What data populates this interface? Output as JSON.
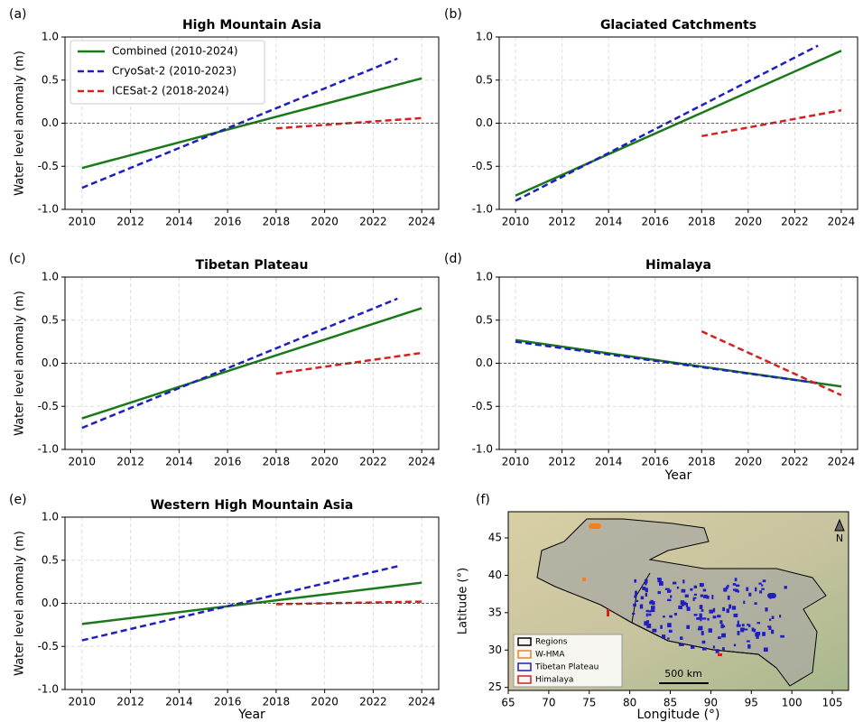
{
  "chart_data": [
    {
      "type": "line",
      "label": "(a)",
      "title": "High Mountain Asia",
      "ylabel": "Water level anomaly (m)",
      "xlim": [
        2009.3,
        2024.7
      ],
      "ylim": [
        -1.0,
        1.0
      ],
      "xticks": [
        2010,
        2012,
        2014,
        2016,
        2018,
        2020,
        2022,
        2024
      ],
      "yticks": [
        {
          "value": -1.0,
          "label": "-1.0"
        },
        {
          "value": -0.5,
          "label": "-0.5"
        },
        {
          "value": 0.0,
          "label": "0.0"
        },
        {
          "value": 0.5,
          "label": "0.5"
        },
        {
          "value": 1.0,
          "label": "1.0"
        }
      ],
      "grid": true,
      "legend": "upper left",
      "series": [
        {
          "name": "Combined (2010-2024)",
          "color": "#1a7a1a",
          "linestyle": "solid",
          "x": [
            2010,
            2024
          ],
          "values": [
            -0.52,
            0.52
          ]
        },
        {
          "name": "CryoSat-2 (2010-2023)",
          "color": "#1f1fbf",
          "linestyle": "dashed",
          "x": [
            2010,
            2023
          ],
          "values": [
            -0.75,
            0.75
          ]
        },
        {
          "name": "ICESat-2 (2018-2024)",
          "color": "#d62020",
          "linestyle": "dashed",
          "x": [
            2018,
            2024
          ],
          "values": [
            -0.06,
            0.06
          ]
        }
      ]
    },
    {
      "type": "line",
      "label": "(b)",
      "title": "Glaciated Catchments",
      "xlim": [
        2009.3,
        2024.7
      ],
      "ylim": [
        -1.0,
        1.0
      ],
      "xticks": [
        2010,
        2012,
        2014,
        2016,
        2018,
        2020,
        2022,
        2024
      ],
      "yticks": [
        {
          "value": -1.0,
          "label": "-1.0"
        },
        {
          "value": -0.5,
          "label": "-0.5"
        },
        {
          "value": 0.0,
          "label": "0.0"
        },
        {
          "value": 0.5,
          "label": "0.5"
        },
        {
          "value": 1.0,
          "label": "1.0"
        }
      ],
      "grid": true,
      "series": [
        {
          "color": "#1a7a1a",
          "linestyle": "solid",
          "x": [
            2010,
            2024
          ],
          "values": [
            -0.84,
            0.84
          ]
        },
        {
          "color": "#1f1fbf",
          "linestyle": "dashed",
          "x": [
            2010,
            2023
          ],
          "values": [
            -0.9,
            0.9
          ]
        },
        {
          "color": "#d62020",
          "linestyle": "dashed",
          "x": [
            2018,
            2024
          ],
          "values": [
            -0.15,
            0.15
          ]
        }
      ]
    },
    {
      "type": "line",
      "label": "(c)",
      "title": "Tibetan Plateau",
      "ylabel": "Water level anomaly (m)",
      "xlim": [
        2009.3,
        2024.7
      ],
      "ylim": [
        -1.0,
        1.0
      ],
      "xticks": [
        2010,
        2012,
        2014,
        2016,
        2018,
        2020,
        2022,
        2024
      ],
      "yticks": [
        {
          "value": -1.0,
          "label": "-1.0"
        },
        {
          "value": -0.5,
          "label": "-0.5"
        },
        {
          "value": 0.0,
          "label": "0.0"
        },
        {
          "value": 0.5,
          "label": "0.5"
        },
        {
          "value": 1.0,
          "label": "1.0"
        }
      ],
      "grid": true,
      "series": [
        {
          "color": "#1a7a1a",
          "linestyle": "solid",
          "x": [
            2010,
            2024
          ],
          "values": [
            -0.64,
            0.64
          ]
        },
        {
          "color": "#1f1fbf",
          "linestyle": "dashed",
          "x": [
            2010,
            2023
          ],
          "values": [
            -0.75,
            0.75
          ]
        },
        {
          "color": "#d62020",
          "linestyle": "dashed",
          "x": [
            2018,
            2024
          ],
          "values": [
            -0.12,
            0.12
          ]
        }
      ]
    },
    {
      "type": "line",
      "label": "(d)",
      "title": "Himalaya",
      "xlabel": "Year",
      "xlim": [
        2009.3,
        2024.7
      ],
      "ylim": [
        -1.0,
        1.0
      ],
      "xticks": [
        2010,
        2012,
        2014,
        2016,
        2018,
        2020,
        2022,
        2024
      ],
      "yticks": [
        {
          "value": -1.0,
          "label": "-1.0"
        },
        {
          "value": -0.5,
          "label": "-0.5"
        },
        {
          "value": 0.0,
          "label": "0.0"
        },
        {
          "value": 0.5,
          "label": "0.5"
        },
        {
          "value": 1.0,
          "label": "1.0"
        }
      ],
      "grid": true,
      "series": [
        {
          "color": "#1a7a1a",
          "linestyle": "solid",
          "x": [
            2010,
            2024
          ],
          "values": [
            0.27,
            -0.27
          ]
        },
        {
          "color": "#1f1fbf",
          "linestyle": "dashed",
          "x": [
            2010,
            2023
          ],
          "values": [
            0.25,
            -0.23
          ]
        },
        {
          "color": "#d62020",
          "linestyle": "dashed",
          "x": [
            2018,
            2024
          ],
          "values": [
            0.37,
            -0.37
          ]
        }
      ]
    },
    {
      "type": "line",
      "label": "(e)",
      "title": "Western High Mountain Asia",
      "ylabel": "Water level anomaly (m)",
      "xlabel": "Year",
      "xlim": [
        2009.3,
        2024.7
      ],
      "ylim": [
        -1.0,
        1.0
      ],
      "xticks": [
        2010,
        2012,
        2014,
        2016,
        2018,
        2020,
        2022,
        2024
      ],
      "yticks": [
        {
          "value": -1.0,
          "label": "-1.0"
        },
        {
          "value": -0.5,
          "label": "-0.5"
        },
        {
          "value": 0.0,
          "label": "0.0"
        },
        {
          "value": 0.5,
          "label": "0.5"
        },
        {
          "value": 1.0,
          "label": "1.0"
        }
      ],
      "grid": true,
      "series": [
        {
          "color": "#1a7a1a",
          "linestyle": "solid",
          "x": [
            2010,
            2024
          ],
          "values": [
            -0.24,
            0.24
          ]
        },
        {
          "color": "#1f1fbf",
          "linestyle": "dashed",
          "x": [
            2010,
            2023
          ],
          "values": [
            -0.43,
            0.43
          ]
        },
        {
          "color": "#d62020",
          "linestyle": "dashed",
          "x": [
            2018,
            2024
          ],
          "values": [
            -0.01,
            0.02
          ]
        }
      ]
    },
    {
      "type": "map",
      "label": "(f)",
      "xlabel": "Longitude (°)",
      "ylabel": "Latitude (°)",
      "xlim": [
        65,
        107
      ],
      "ylim": [
        24.6,
        48.5
      ],
      "xticks": [
        65,
        70,
        75,
        80,
        85,
        90,
        95,
        100,
        105
      ],
      "yticks": [
        25,
        30,
        35,
        40,
        45
      ],
      "legend": [
        {
          "name": "Regions",
          "color": "#000000"
        },
        {
          "name": "W-HMA",
          "color": "#f08020"
        },
        {
          "name": "Tibetan Plateau",
          "color": "#1f1fbf"
        },
        {
          "name": "Himalaya",
          "color": "#d62020"
        }
      ],
      "scale_label": "500 km",
      "north_label": "N"
    }
  ]
}
